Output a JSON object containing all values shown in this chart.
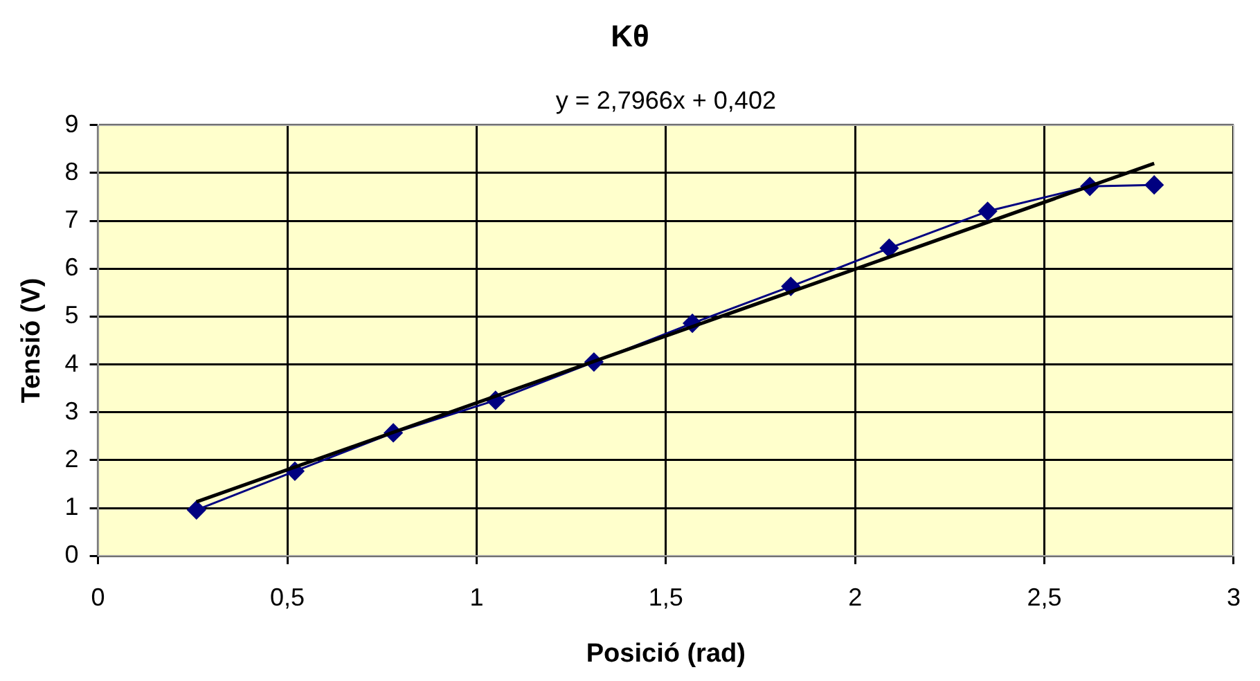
{
  "chart_data": {
    "type": "scatter",
    "title": "Kθ",
    "xlabel": "Posició (rad)",
    "ylabel": "Tensió (V)",
    "annotations": [
      "y = 2,7966x + 0,402"
    ],
    "series": [
      {
        "type": "line",
        "color": "#000080",
        "marker": "diamond",
        "x": [
          0.26,
          0.52,
          0.78,
          1.05,
          1.31,
          1.57,
          1.83,
          2.09,
          2.35,
          2.62,
          2.79
        ],
        "values": [
          0.96,
          1.77,
          2.57,
          3.25,
          4.05,
          4.86,
          5.63,
          6.43,
          7.2,
          7.72,
          7.75
        ]
      },
      {
        "type": "line",
        "color": "#000000",
        "marker": "none",
        "x": [
          0.26,
          2.79
        ],
        "values": [
          1.13,
          8.2
        ]
      }
    ],
    "xlim": [
      0,
      3
    ],
    "xticks": [
      0,
      {
        "value": 0.5,
        "label": "0,5"
      },
      1,
      {
        "value": 1.5,
        "label": "1,5"
      },
      2,
      {
        "value": 2.5,
        "label": "2,5"
      },
      3
    ],
    "ylim": [
      0,
      9
    ],
    "yticks": [
      0,
      1,
      2,
      3,
      4,
      5,
      6,
      7,
      8,
      9
    ],
    "grid": true,
    "legend": false
  }
}
